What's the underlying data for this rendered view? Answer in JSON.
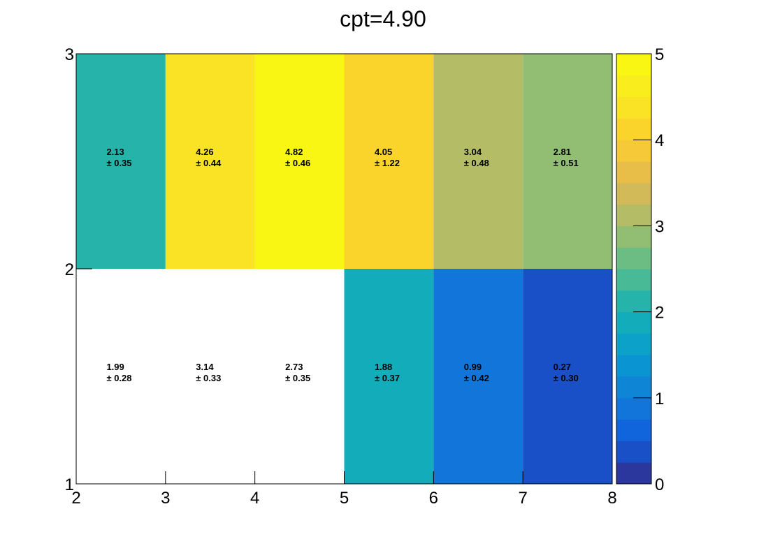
{
  "chart_data": {
    "type": "heatmap",
    "title": "cpt=4.90",
    "xlabel": "",
    "ylabel": "",
    "xlim": [
      2,
      8
    ],
    "ylim": [
      1,
      3
    ],
    "x_ticks": [
      "2",
      "3",
      "4",
      "5",
      "6",
      "7",
      "8"
    ],
    "y_ticks": [
      "1",
      "2",
      "3"
    ],
    "x_bin_edges": [
      2,
      3,
      4,
      5,
      6,
      7,
      8
    ],
    "y_bin_edges": [
      1,
      2,
      3
    ],
    "color_range": [
      0,
      5
    ],
    "colorbar_ticks": [
      "0",
      "1",
      "2",
      "3",
      "4",
      "5"
    ],
    "colorbar_levels": 20,
    "palette": "parula",
    "grid": false,
    "cells": [
      {
        "x": [
          2,
          3
        ],
        "y": [
          2,
          3
        ],
        "value": 2.13,
        "value_label": "2.13",
        "error_label": "± 0.35"
      },
      {
        "x": [
          3,
          4
        ],
        "y": [
          2,
          3
        ],
        "value": 4.26,
        "value_label": "4.26",
        "error_label": "± 0.44"
      },
      {
        "x": [
          4,
          5
        ],
        "y": [
          2,
          3
        ],
        "value": 4.82,
        "value_label": "4.82",
        "error_label": "± 0.46"
      },
      {
        "x": [
          5,
          6
        ],
        "y": [
          2,
          3
        ],
        "value": 4.05,
        "value_label": "4.05",
        "error_label": "± 1.22"
      },
      {
        "x": [
          6,
          7
        ],
        "y": [
          2,
          3
        ],
        "value": 3.04,
        "value_label": "3.04",
        "error_label": "± 0.48"
      },
      {
        "x": [
          7,
          8
        ],
        "y": [
          2,
          3
        ],
        "value": 2.81,
        "value_label": "2.81",
        "error_label": "± 0.51"
      },
      {
        "x": [
          2,
          3
        ],
        "y": [
          1,
          2
        ],
        "value": 1.99,
        "value_label": "1.99",
        "error_label": "± 0.28",
        "filled": false
      },
      {
        "x": [
          3,
          4
        ],
        "y": [
          1,
          2
        ],
        "value": 3.14,
        "value_label": "3.14",
        "error_label": "± 0.33",
        "filled": false
      },
      {
        "x": [
          4,
          5
        ],
        "y": [
          1,
          2
        ],
        "value": 2.73,
        "value_label": "2.73",
        "error_label": "± 0.35",
        "filled": false
      },
      {
        "x": [
          5,
          6
        ],
        "y": [
          1,
          2
        ],
        "value": 1.88,
        "value_label": "1.88",
        "error_label": "± 0.37"
      },
      {
        "x": [
          6,
          7
        ],
        "y": [
          1,
          2
        ],
        "value": 0.99,
        "value_label": "0.99",
        "error_label": "± 0.42"
      },
      {
        "x": [
          7,
          8
        ],
        "y": [
          1,
          2
        ],
        "value": 0.27,
        "value_label": "0.27",
        "error_label": "± 0.30"
      }
    ]
  }
}
